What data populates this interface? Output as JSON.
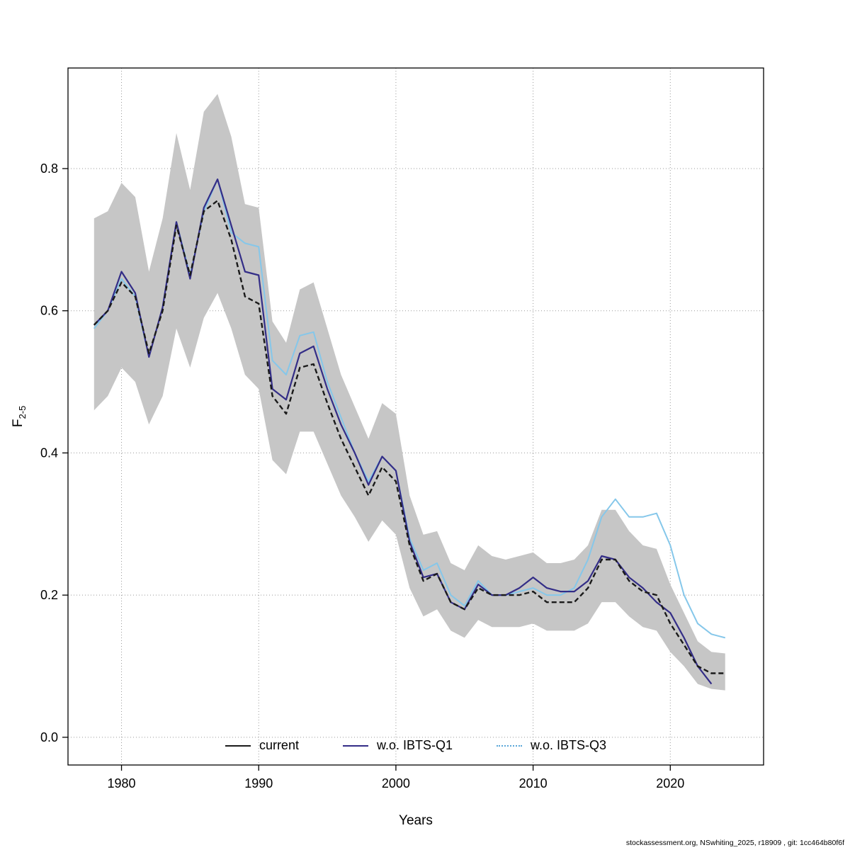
{
  "figure": {
    "background": "#ffffff",
    "footer": "stockassessment.org, NSwhiting_2025, r18909 , git: 1cc464b80f6f"
  },
  "axes": {
    "x_label": "Years",
    "y_label_main": "F",
    "y_label_sub": "2-5",
    "x_ticks": [
      1980,
      1990,
      2000,
      2010,
      2020
    ],
    "x_tick_labels": [
      "1980",
      "1990",
      "2000",
      "2010",
      "2020"
    ],
    "y_ticks": [
      0.0,
      0.2,
      0.4,
      0.6,
      0.8
    ],
    "y_tick_labels": [
      "0.0",
      "0.2",
      "0.4",
      "0.6",
      "0.8"
    ]
  },
  "legend": {
    "items": [
      {
        "label": "current",
        "color": "#1a1a1a",
        "style": "solid"
      },
      {
        "label": "w.o. IBTS-Q1",
        "color": "#332d87",
        "style": "solid"
      },
      {
        "label": "w.o. IBTS-Q3",
        "color": "#5aa7d8",
        "style": "dotted"
      }
    ]
  },
  "chart_data": {
    "type": "line",
    "title": "",
    "xlabel": "Years",
    "ylabel": "F_2-5",
    "grid": true,
    "legend_position": "bottom-center",
    "x_range": [
      1976.1,
      2026.8
    ],
    "y_range": [
      -0.039,
      0.9415
    ],
    "band_color": "#c6c6c6",
    "grid_color": "#999999",
    "years": [
      1978,
      1979,
      1980,
      1981,
      1982,
      1983,
      1984,
      1985,
      1986,
      1987,
      1988,
      1989,
      1990,
      1991,
      1992,
      1993,
      1994,
      1995,
      1996,
      1997,
      1998,
      1999,
      2000,
      2001,
      2002,
      2003,
      2004,
      2005,
      2006,
      2007,
      2008,
      2009,
      2010,
      2011,
      2012,
      2013,
      2014,
      2015,
      2016,
      2017,
      2018,
      2019,
      2020,
      2021,
      2022,
      2023,
      2024
    ],
    "series": [
      {
        "name": "current",
        "color": "#1a1a1a",
        "dash": "7,4",
        "width": 2.4,
        "values": [
          0.58,
          0.6,
          0.64,
          0.62,
          0.54,
          0.6,
          0.72,
          0.65,
          0.74,
          0.755,
          0.7,
          0.62,
          0.61,
          0.48,
          0.455,
          0.52,
          0.525,
          0.47,
          0.42,
          0.38,
          0.34,
          0.38,
          0.36,
          0.27,
          0.22,
          0.23,
          0.19,
          0.18,
          0.21,
          0.2,
          0.2,
          0.2,
          0.205,
          0.19,
          0.19,
          0.19,
          0.21,
          0.25,
          0.25,
          0.22,
          0.205,
          0.2,
          0.16,
          0.13,
          0.1,
          0.09,
          0.09
        ]
      },
      {
        "name": "w.o. IBTS-Q1",
        "color": "#332d87",
        "dash": "",
        "width": 2.2,
        "values": [
          0.58,
          0.6,
          0.655,
          0.625,
          0.535,
          0.605,
          0.725,
          0.645,
          0.745,
          0.785,
          0.72,
          0.655,
          0.65,
          0.49,
          0.475,
          0.54,
          0.55,
          0.49,
          0.44,
          0.4,
          0.355,
          0.395,
          0.375,
          0.275,
          0.225,
          0.23,
          0.19,
          0.18,
          0.215,
          0.2,
          0.2,
          0.21,
          0.225,
          0.21,
          0.205,
          0.205,
          0.22,
          0.255,
          0.25,
          0.225,
          0.21,
          0.19,
          0.175,
          0.14,
          0.1,
          0.075,
          null
        ]
      },
      {
        "name": "w.o. IBTS-Q3",
        "color": "#85c7ea",
        "dash": "",
        "width": 2.0,
        "values": [
          0.575,
          0.6,
          0.645,
          0.62,
          0.535,
          0.605,
          0.725,
          0.65,
          0.74,
          0.785,
          0.71,
          0.695,
          0.69,
          0.53,
          0.51,
          0.565,
          0.57,
          0.5,
          0.45,
          0.4,
          0.36,
          0.395,
          0.375,
          0.28,
          0.235,
          0.245,
          0.2,
          0.185,
          0.22,
          0.2,
          0.2,
          0.205,
          0.21,
          0.2,
          0.2,
          0.21,
          0.25,
          0.31,
          0.335,
          0.31,
          0.31,
          0.315,
          0.27,
          0.2,
          0.16,
          0.145,
          0.14
        ]
      }
    ],
    "band": {
      "series": "current",
      "lower": [
        0.46,
        0.48,
        0.52,
        0.5,
        0.44,
        0.48,
        0.575,
        0.52,
        0.59,
        0.625,
        0.575,
        0.51,
        0.49,
        0.39,
        0.37,
        0.43,
        0.43,
        0.385,
        0.34,
        0.31,
        0.275,
        0.305,
        0.285,
        0.21,
        0.17,
        0.18,
        0.15,
        0.14,
        0.165,
        0.155,
        0.155,
        0.155,
        0.16,
        0.15,
        0.15,
        0.15,
        0.16,
        0.19,
        0.19,
        0.17,
        0.155,
        0.15,
        0.12,
        0.1,
        0.075,
        0.068,
        0.066
      ],
      "upper": [
        0.73,
        0.74,
        0.78,
        0.76,
        0.655,
        0.73,
        0.85,
        0.77,
        0.88,
        0.905,
        0.845,
        0.75,
        0.745,
        0.585,
        0.555,
        0.63,
        0.64,
        0.575,
        0.51,
        0.465,
        0.42,
        0.47,
        0.455,
        0.34,
        0.285,
        0.29,
        0.245,
        0.235,
        0.27,
        0.255,
        0.25,
        0.255,
        0.26,
        0.245,
        0.245,
        0.25,
        0.27,
        0.32,
        0.32,
        0.29,
        0.27,
        0.265,
        0.215,
        0.175,
        0.135,
        0.12,
        0.118
      ]
    }
  }
}
